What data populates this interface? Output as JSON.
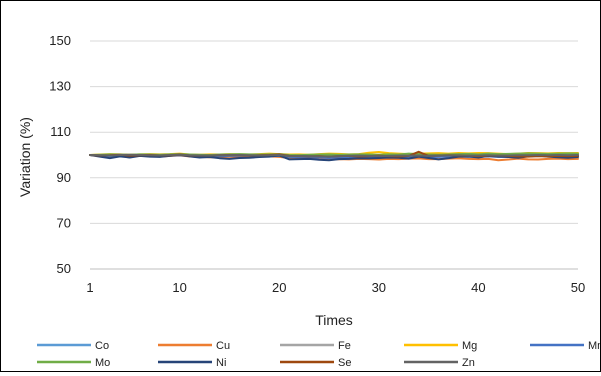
{
  "chart_data": {
    "type": "line",
    "xlabel": "Times",
    "ylabel": "Variation (%)",
    "ylim": [
      50,
      150
    ],
    "xlim": [
      1,
      50
    ],
    "y_ticks": [
      50,
      70,
      90,
      110,
      130,
      150
    ],
    "x_ticks": [
      1,
      10,
      20,
      30,
      40,
      50
    ],
    "grid": "horizontal",
    "legend_position": "bottom",
    "series": [
      {
        "name": "Co",
        "color": "#5B9BD5",
        "values": [
          100,
          99.9,
          99.8,
          99.9,
          100,
          100.1,
          100,
          99.9,
          100,
          100.2,
          100,
          99.8,
          99.7,
          99.8,
          99.9,
          100,
          99.9,
          99.8,
          99.9,
          100,
          99.7,
          99.6,
          99.5,
          99.6,
          99.5,
          99.6,
          99.5,
          99.6,
          99.8,
          99.7,
          99.6,
          99.7,
          99.8,
          99.6,
          99.7,
          99.7,
          99.8,
          99.8,
          99.8,
          99.7,
          99.6,
          99.8,
          99.7,
          99.9,
          99.9,
          100,
          100.1,
          100.2,
          100.1,
          100.1
        ]
      },
      {
        "name": "Cu",
        "color": "#ED7D31",
        "values": [
          100,
          99.5,
          99.2,
          99.6,
          99.8,
          99.6,
          99.5,
          99.3,
          99.6,
          99.8,
          99.4,
          99.2,
          99,
          99,
          99.3,
          99.2,
          99.1,
          99.4,
          99.4,
          99.2,
          98.7,
          98.8,
          98.6,
          98.3,
          98,
          98.2,
          98.1,
          98.3,
          98.2,
          98,
          98.3,
          98.2,
          98.4,
          98.5,
          98.2,
          98.2,
          98.4,
          98.6,
          98.3,
          98.2,
          98.3,
          97.7,
          98,
          98.4,
          98.1,
          98,
          98.3,
          98.4,
          98.2,
          98.3
        ]
      },
      {
        "name": "Fe",
        "color": "#A5A5A5",
        "values": [
          100,
          99.8,
          99.7,
          99.9,
          100,
          99.9,
          99.8,
          99.7,
          99.9,
          100,
          99.8,
          99.7,
          99.6,
          99.7,
          99.8,
          99.9,
          99.8,
          99.7,
          99.8,
          99.9,
          99.4,
          99.5,
          99.3,
          99.2,
          99,
          99.2,
          99.3,
          99.4,
          99.5,
          99.3,
          99.4,
          99.4,
          99.5,
          99.6,
          99.3,
          99.4,
          99.5,
          99.6,
          99.4,
          99.4,
          99.5,
          99.4,
          99.5,
          99.6,
          99.6,
          99.7,
          99.8,
          99.9,
          99.8,
          99.8
        ]
      },
      {
        "name": "Mg",
        "color": "#FFC000",
        "values": [
          100,
          100.2,
          100.4,
          100.3,
          100.1,
          100.3,
          100.4,
          100.3,
          100.4,
          100.6,
          100.2,
          100.1,
          100.3,
          100.2,
          100.4,
          100.3,
          100.2,
          100.4,
          100.6,
          100.4,
          100.2,
          100.3,
          100.1,
          100.4,
          100.6,
          100.5,
          100.3,
          100.4,
          101,
          101.3,
          100.8,
          100.6,
          100.4,
          100.6,
          100.7,
          100.8,
          100.6,
          100.9,
          100.7,
          100.9,
          100.8,
          100.6,
          100.4,
          100.6,
          100.9,
          100.8,
          100.7,
          100.9,
          100.8,
          100.9
        ]
      },
      {
        "name": "Mn",
        "color": "#4472C4",
        "values": [
          100,
          99.7,
          99.5,
          99.8,
          99.9,
          99.8,
          99.6,
          99.5,
          99.7,
          99.9,
          99.6,
          99.4,
          99.3,
          99.5,
          99.6,
          99.7,
          99.6,
          99.4,
          99.5,
          99.6,
          99.2,
          99.1,
          99,
          98.9,
          98.7,
          98.9,
          99,
          99.1,
          99.2,
          99.1,
          99.2,
          99.1,
          99.3,
          99.4,
          99.1,
          99.2,
          99.3,
          99.4,
          99.2,
          99.3,
          99.4,
          99.2,
          99.3,
          99.4,
          99.5,
          99.5,
          99.6,
          99.6,
          99.5,
          99.5
        ]
      },
      {
        "name": "Mo",
        "color": "#70AD47",
        "values": [
          100,
          100.1,
          100.3,
          100.2,
          100.1,
          100.3,
          100.2,
          100.1,
          100.3,
          100.4,
          100.2,
          100.1,
          100,
          100.2,
          100.3,
          100.4,
          100.3,
          100.2,
          100.3,
          100.4,
          100,
          99.9,
          100.1,
          100.2,
          100.3,
          100.1,
          100.2,
          100.3,
          100.2,
          100.1,
          100.3,
          100.2,
          100.6,
          100.4,
          100.2,
          100.1,
          100.3,
          100.4,
          100.5,
          100.3,
          100.6,
          100.4,
          100.5,
          100.6,
          100.7,
          100.6,
          100.5,
          100.6,
          100.7,
          100.6
        ]
      },
      {
        "name": "Ni",
        "color": "#264478",
        "values": [
          100,
          99.3,
          98.6,
          99.4,
          98.9,
          99.6,
          99.3,
          99.2,
          99.6,
          100.1,
          99.4,
          98.9,
          99.1,
          98.6,
          98.3,
          98.7,
          98.8,
          99.1,
          99.3,
          99.8,
          98.1,
          98.2,
          98.3,
          97.9,
          97.7,
          98.2,
          98.3,
          98.6,
          98.5,
          98.7,
          98.9,
          98.8,
          98.4,
          99.3,
          98.7,
          98.1,
          98.6,
          99.3,
          99.4,
          98.9,
          99.6,
          99.3,
          99.1,
          98.8,
          99.4,
          99.7,
          99.3,
          99,
          98.8,
          99.1
        ]
      },
      {
        "name": "Se",
        "color": "#9E480E",
        "values": [
          100,
          99.8,
          99.9,
          100.1,
          99.7,
          99.9,
          100,
          99.8,
          99.9,
          100.2,
          99.8,
          99.7,
          99.8,
          99.9,
          100,
          99.9,
          99.7,
          99.9,
          100,
          100.3,
          99.6,
          99.5,
          99.4,
          99.5,
          99.3,
          99.5,
          99.6,
          99.4,
          99.5,
          99.7,
          99.5,
          99.4,
          99.6,
          101.4,
          99.6,
          99.7,
          99.9,
          99.8,
          99.7,
          99.5,
          99.7,
          99.8,
          99.6,
          99.4,
          99.3,
          99.5,
          99.4,
          99.6,
          99.5,
          99.6
        ]
      },
      {
        "name": "Zn",
        "color": "#636363",
        "values": [
          100,
          99.9,
          99.8,
          100,
          100.1,
          100,
          99.9,
          99.8,
          100,
          100.1,
          99.9,
          99.8,
          99.7,
          99.9,
          100,
          100,
          99.9,
          99.8,
          99.9,
          100,
          99.5,
          99.6,
          99.5,
          99.4,
          99.3,
          99.5,
          99.6,
          99.7,
          99.6,
          99.5,
          99.6,
          99.7,
          99.7,
          99.8,
          99.6,
          99.7,
          99.8,
          99.9,
          99.7,
          99.8,
          99.9,
          99.7,
          99.8,
          99.9,
          99.9,
          100,
          99.9,
          100,
          99.9,
          100
        ]
      }
    ]
  }
}
